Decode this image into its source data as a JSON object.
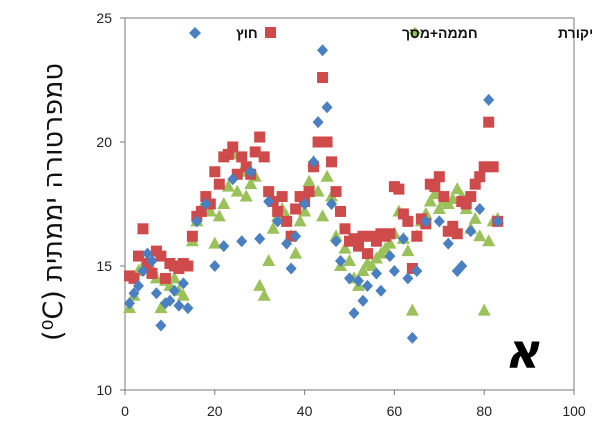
{
  "chart_data": {
    "type": "scatter",
    "title": "",
    "ylabel": "טמפרטורה יממתית (⁰C)",
    "xlabel": "",
    "xlim": [
      0,
      100
    ],
    "ylim": [
      10,
      25
    ],
    "x_ticks": [
      "0",
      "20",
      "40",
      "60",
      "80",
      "100"
    ],
    "y_ticks": [
      "10",
      "15",
      "20",
      "25"
    ],
    "panel_label": "א",
    "legend_position": "top",
    "grid": false,
    "series": [
      {
        "name": "חוץ",
        "marker": "diamond",
        "color": "#4a7fc1",
        "points": [
          [
            1,
            13.5
          ],
          [
            2,
            13.9
          ],
          [
            3,
            14.2
          ],
          [
            4,
            14.8
          ],
          [
            5,
            15.5
          ],
          [
            6,
            15.2
          ],
          [
            7,
            13.9
          ],
          [
            8,
            12.6
          ],
          [
            9,
            13.5
          ],
          [
            10,
            13.6
          ],
          [
            11,
            14.0
          ],
          [
            12,
            13.4
          ],
          [
            13,
            14.3
          ],
          [
            14,
            13.3
          ],
          [
            16,
            16.8
          ],
          [
            18,
            17.5
          ],
          [
            20,
            15.0
          ],
          [
            22,
            15.8
          ],
          [
            24,
            18.5
          ],
          [
            26,
            16.0
          ],
          [
            28,
            18.8
          ],
          [
            30,
            16.1
          ],
          [
            32,
            17.6
          ],
          [
            34,
            16.8
          ],
          [
            36,
            15.9
          ],
          [
            37,
            14.9
          ],
          [
            38,
            16.2
          ],
          [
            40,
            17.5
          ],
          [
            42,
            19.2
          ],
          [
            43,
            20.8
          ],
          [
            44,
            23.7
          ],
          [
            45,
            21.4
          ],
          [
            46,
            17.5
          ],
          [
            47,
            16.0
          ],
          [
            48,
            15.2
          ],
          [
            50,
            14.5
          ],
          [
            51,
            13.1
          ],
          [
            52,
            14.4
          ],
          [
            53,
            13.6
          ],
          [
            54,
            14.2
          ],
          [
            56,
            14.7
          ],
          [
            57,
            14.0
          ],
          [
            59,
            15.4
          ],
          [
            60,
            14.8
          ],
          [
            62,
            16.1
          ],
          [
            63,
            14.5
          ],
          [
            64,
            12.1
          ],
          [
            65,
            14.8
          ],
          [
            67,
            16.8
          ],
          [
            70,
            16.8
          ],
          [
            72,
            15.9
          ],
          [
            74,
            14.8
          ],
          [
            75,
            15.0
          ],
          [
            77,
            16.4
          ],
          [
            79,
            17.3
          ],
          [
            81,
            21.7
          ],
          [
            83,
            16.8
          ]
        ]
      },
      {
        "name": "חממה+מסך",
        "marker": "square",
        "color": "#cf4a4a",
        "points": [
          [
            1,
            14.6
          ],
          [
            2,
            14.5
          ],
          [
            3,
            15.4
          ],
          [
            4,
            16.5
          ],
          [
            5,
            15.1
          ],
          [
            6,
            14.7
          ],
          [
            7,
            15.6
          ],
          [
            8,
            15.4
          ],
          [
            9,
            14.5
          ],
          [
            10,
            15.1
          ],
          [
            11,
            15.0
          ],
          [
            12,
            14.9
          ],
          [
            13,
            15.1
          ],
          [
            14,
            15.0
          ],
          [
            15,
            16.2
          ],
          [
            16,
            17.0
          ],
          [
            17,
            17.2
          ],
          [
            18,
            17.8
          ],
          [
            19,
            17.5
          ],
          [
            20,
            18.8
          ],
          [
            21,
            18.3
          ],
          [
            22,
            19.4
          ],
          [
            23,
            19.5
          ],
          [
            24,
            19.8
          ],
          [
            25,
            18.7
          ],
          [
            26,
            19.4
          ],
          [
            27,
            19.0
          ],
          [
            28,
            18.7
          ],
          [
            29,
            19.6
          ],
          [
            30,
            20.2
          ],
          [
            31,
            19.4
          ],
          [
            32,
            18.0
          ],
          [
            33,
            17.6
          ],
          [
            34,
            17.2
          ],
          [
            35,
            17.8
          ],
          [
            36,
            16.8
          ],
          [
            37,
            16.2
          ],
          [
            38,
            17.3
          ],
          [
            39,
            17.8
          ],
          [
            40,
            17.6
          ],
          [
            41,
            18.0
          ],
          [
            42,
            19.0
          ],
          [
            43,
            20.0
          ],
          [
            44,
            22.6
          ],
          [
            45,
            20.0
          ],
          [
            46,
            19.2
          ],
          [
            47,
            18.0
          ],
          [
            48,
            17.2
          ],
          [
            49,
            16.5
          ],
          [
            50,
            16.0
          ],
          [
            51,
            16.1
          ],
          [
            52,
            15.8
          ],
          [
            53,
            16.2
          ],
          [
            54,
            15.5
          ],
          [
            55,
            16.2
          ],
          [
            56,
            16.0
          ],
          [
            57,
            16.3
          ],
          [
            58,
            16.2
          ],
          [
            59,
            16.3
          ],
          [
            60,
            18.2
          ],
          [
            61,
            18.1
          ],
          [
            62,
            17.1
          ],
          [
            63,
            16.8
          ],
          [
            64,
            14.9
          ],
          [
            65,
            16.2
          ],
          [
            66,
            16.9
          ],
          [
            67,
            16.7
          ],
          [
            68,
            18.3
          ],
          [
            69,
            18.2
          ],
          [
            70,
            18.6
          ],
          [
            71,
            17.8
          ],
          [
            72,
            16.4
          ],
          [
            73,
            16.6
          ],
          [
            74,
            16.3
          ],
          [
            75,
            17.6
          ],
          [
            76,
            17.5
          ],
          [
            77,
            17.8
          ],
          [
            78,
            18.3
          ],
          [
            79,
            18.6
          ],
          [
            80,
            19.0
          ],
          [
            81,
            20.8
          ],
          [
            82,
            19.0
          ],
          [
            83,
            16.8
          ]
        ]
      },
      {
        "name": "חממה ביקורת",
        "marker": "triangle",
        "color": "#9bc15a",
        "points": [
          [
            1,
            13.3
          ],
          [
            2,
            13.8
          ],
          [
            3,
            14.8
          ],
          [
            4,
            15.0
          ],
          [
            5,
            15.2
          ],
          [
            6,
            14.9
          ],
          [
            7,
            14.5
          ],
          [
            8,
            13.3
          ],
          [
            9,
            14.4
          ],
          [
            10,
            14.2
          ],
          [
            11,
            14.5
          ],
          [
            12,
            14.0
          ],
          [
            13,
            13.8
          ],
          [
            15,
            16.0
          ],
          [
            16,
            16.8
          ],
          [
            17,
            17.3
          ],
          [
            18,
            17.5
          ],
          [
            19,
            17.2
          ],
          [
            20,
            15.9
          ],
          [
            21,
            17.0
          ],
          [
            22,
            17.5
          ],
          [
            23,
            18.2
          ],
          [
            24,
            19.5
          ],
          [
            25,
            18.0
          ],
          [
            26,
            18.8
          ],
          [
            27,
            17.8
          ],
          [
            28,
            18.3
          ],
          [
            29,
            18.6
          ],
          [
            30,
            14.2
          ],
          [
            31,
            13.8
          ],
          [
            32,
            15.2
          ],
          [
            33,
            16.5
          ],
          [
            34,
            17.0
          ],
          [
            35,
            17.3
          ],
          [
            36,
            17.0
          ],
          [
            37,
            16.2
          ],
          [
            38,
            15.5
          ],
          [
            39,
            16.8
          ],
          [
            40,
            17.2
          ],
          [
            41,
            18.4
          ],
          [
            42,
            19.2
          ],
          [
            43,
            18.0
          ],
          [
            44,
            17.0
          ],
          [
            45,
            18.6
          ],
          [
            46,
            17.8
          ],
          [
            47,
            16.2
          ],
          [
            48,
            15.0
          ],
          [
            49,
            15.7
          ],
          [
            50,
            15.2
          ],
          [
            51,
            14.5
          ],
          [
            52,
            14.2
          ],
          [
            53,
            14.8
          ],
          [
            54,
            15.1
          ],
          [
            55,
            15.0
          ],
          [
            56,
            15.3
          ],
          [
            57,
            15.5
          ],
          [
            58,
            15.7
          ],
          [
            59,
            15.9
          ],
          [
            60,
            16.3
          ],
          [
            61,
            17.2
          ],
          [
            62,
            16.1
          ],
          [
            63,
            15.6
          ],
          [
            64,
            13.2
          ],
          [
            65,
            16.2
          ],
          [
            66,
            16.8
          ],
          [
            67,
            17.1
          ],
          [
            68,
            17.6
          ],
          [
            69,
            17.9
          ],
          [
            70,
            17.3
          ],
          [
            71,
            17.6
          ],
          [
            72,
            17.5
          ],
          [
            73,
            17.7
          ],
          [
            74,
            18.1
          ],
          [
            75,
            17.8
          ],
          [
            76,
            17.3
          ],
          [
            77,
            16.5
          ],
          [
            78,
            16.9
          ],
          [
            79,
            16.2
          ],
          [
            80,
            13.2
          ],
          [
            81,
            16.0
          ],
          [
            82,
            16.8
          ],
          [
            83,
            16.9
          ]
        ]
      }
    ]
  }
}
